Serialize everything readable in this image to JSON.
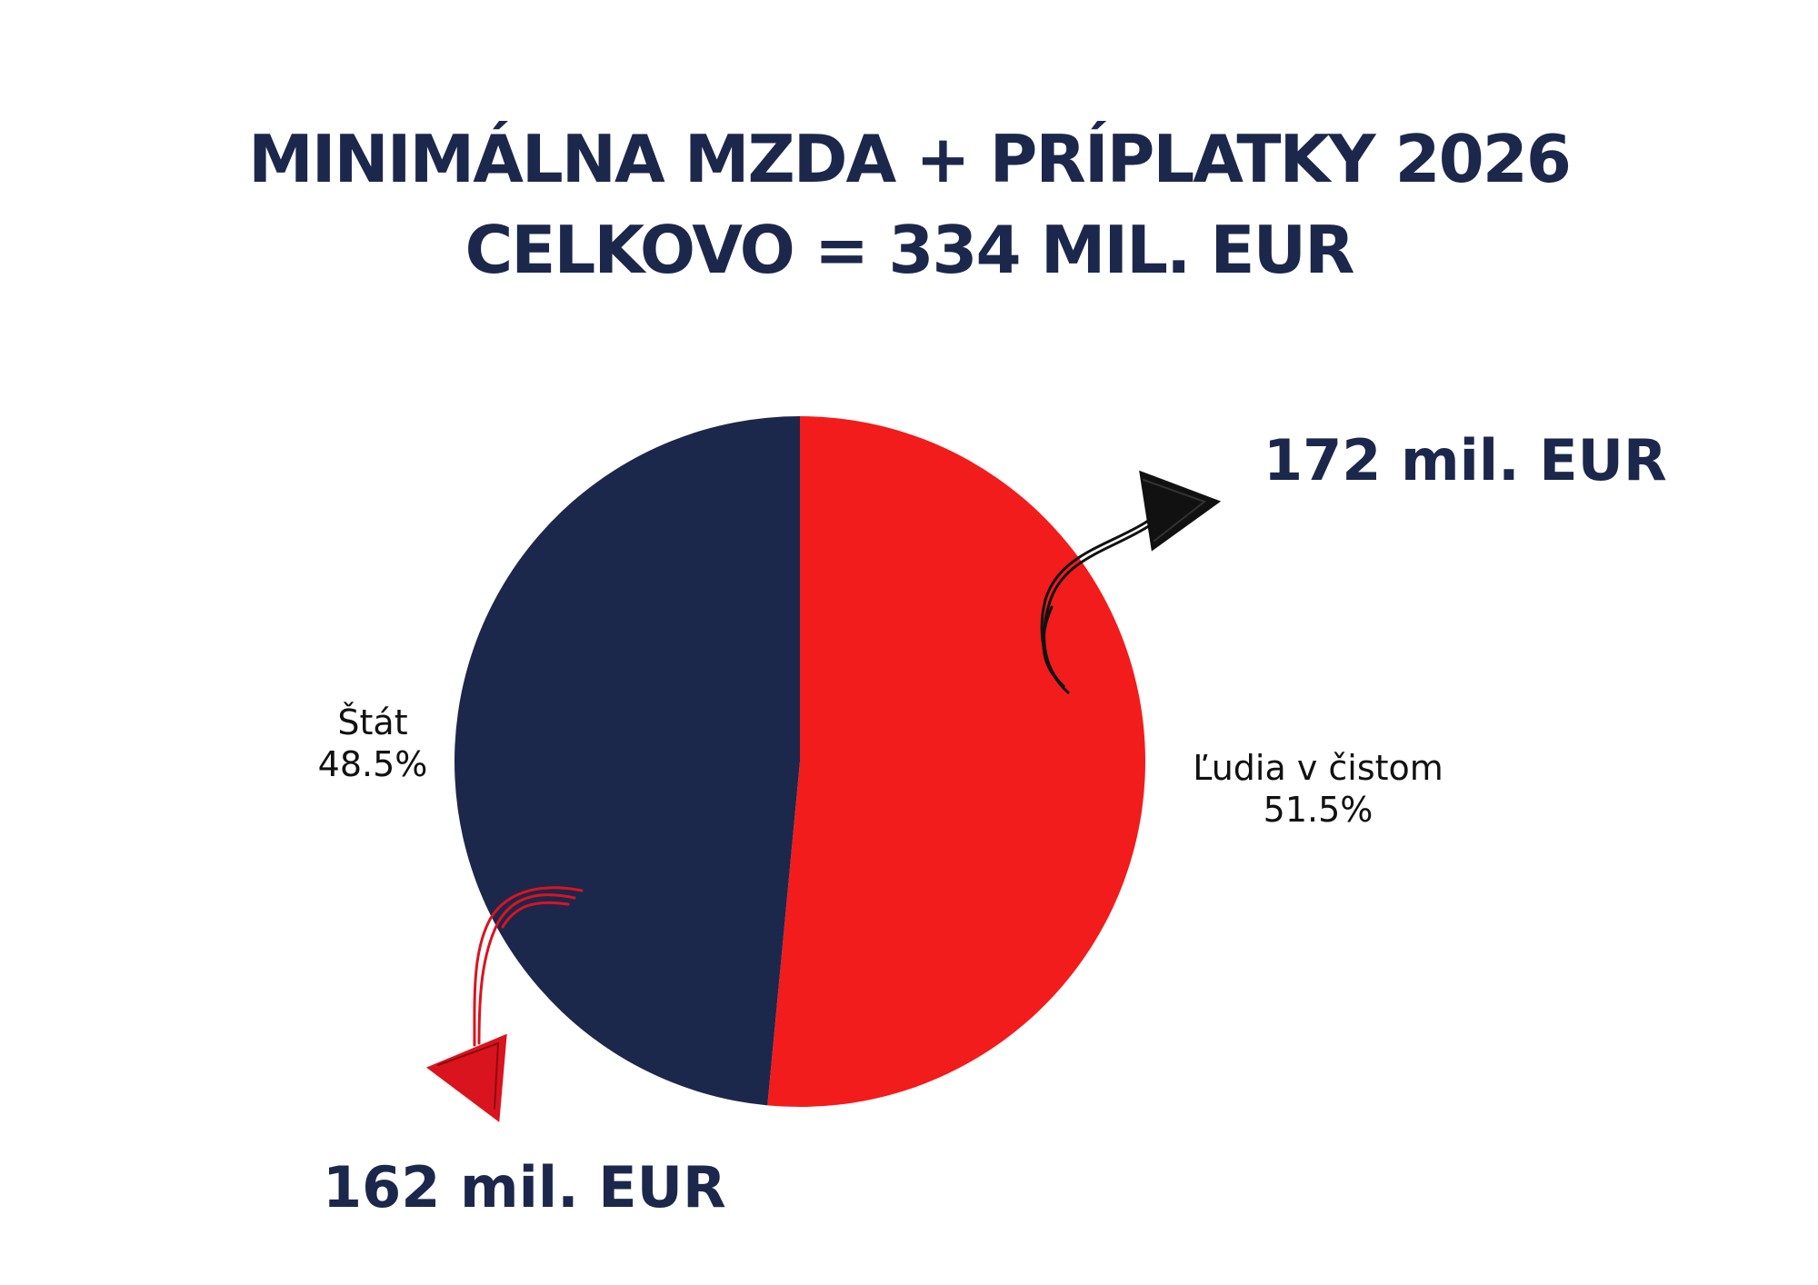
{
  "title": {
    "line1": "MINIMÁLNA MZDA + PRÍPLATKY 2026",
    "line2": "CELKOVO = 334 MIL. EUR"
  },
  "chart_data": {
    "type": "pie",
    "slices": [
      {
        "label": "Ľudia v čistom",
        "percent_label": "51.5%",
        "value": 51.5,
        "color": "#f21c1c"
      },
      {
        "label": "Štát",
        "percent_label": "48.5%",
        "value": 48.5,
        "color": "#1c274c"
      }
    ],
    "annotations": [
      {
        "text": "172 mil. EUR",
        "slice": "Ľudia v čistom",
        "arrow_color": "#111111"
      },
      {
        "text": "162 mil. EUR",
        "slice": "Štát",
        "arrow_color": "#d9141f"
      }
    ]
  }
}
